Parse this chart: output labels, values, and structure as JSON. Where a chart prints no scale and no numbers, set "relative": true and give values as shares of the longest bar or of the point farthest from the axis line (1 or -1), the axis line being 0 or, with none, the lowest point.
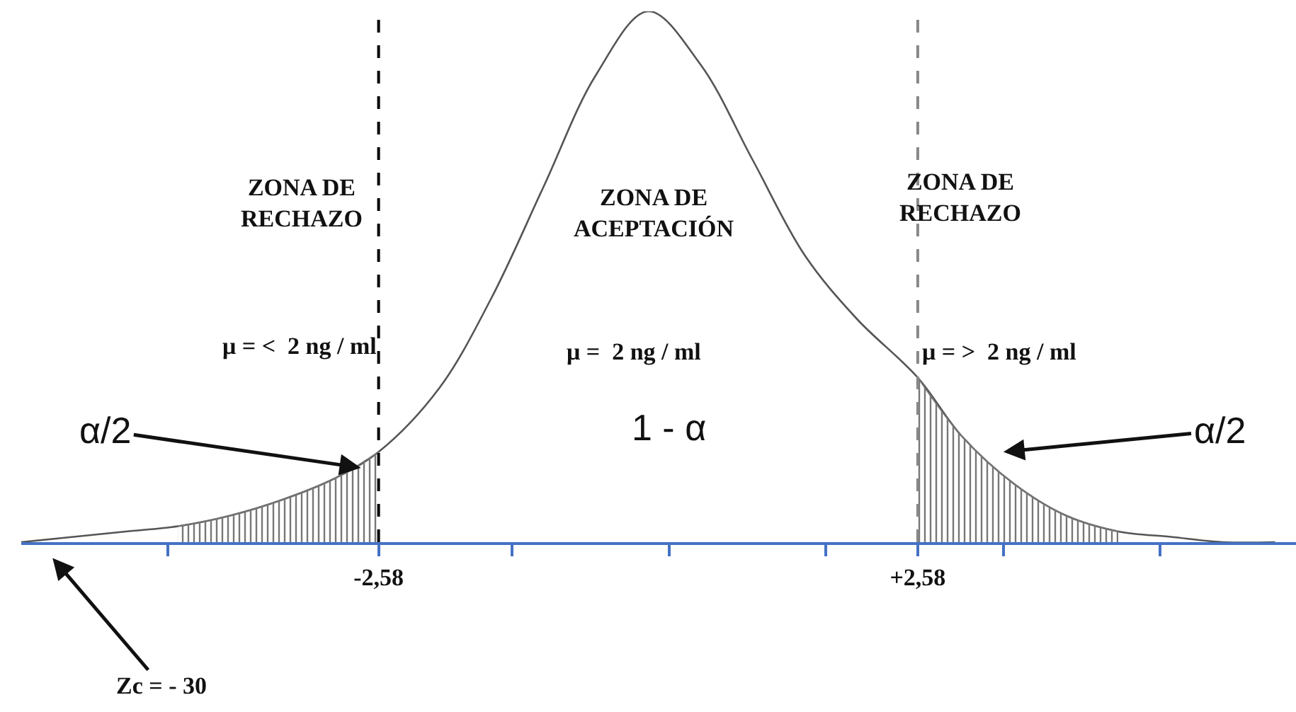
{
  "chart_data": {
    "type": "line",
    "relative": true,
    "tick_labels": "x",
    "line_style": "solid",
    "xlim": [
      -6,
      6.2
    ],
    "xticks": [
      {
        "value": -4.6,
        "label": null
      },
      {
        "value": -2.58,
        "label": "-2,58"
      },
      {
        "value": -1.3,
        "label": null
      },
      {
        "value": 0.2,
        "label": null
      },
      {
        "value": 1.7,
        "label": null
      },
      {
        "value": 2.58,
        "label": "+2,58"
      },
      {
        "value": 3.4,
        "label": null
      },
      {
        "value": 4.9,
        "label": null
      }
    ],
    "series": [
      {
        "color": "#555555",
        "x": [
          -6,
          -5.5,
          -5,
          -4.5,
          -4,
          -3.5,
          -3,
          -2.58,
          -2,
          -1.5,
          -1,
          -0.5,
          0,
          0.5,
          1,
          1.5,
          2,
          2.58,
          3,
          3.5,
          4,
          4.5,
          5,
          5.5,
          6
        ],
        "values": [
          0,
          0.01,
          0.02,
          0.03,
          0.05,
          0.08,
          0.12,
          0.17,
          0.29,
          0.46,
          0.67,
          0.88,
          1,
          0.9,
          0.72,
          0.54,
          0.42,
          0.31,
          0.2,
          0.11,
          0.05,
          0.02,
          0.01,
          0,
          0
        ]
      },
      {
        "type": "area",
        "color": "#777777",
        "x": [
          -4.5,
          -4,
          -3.5,
          -3,
          -2.58
        ],
        "values": [
          0.03,
          0.05,
          0.08,
          0.12,
          0.17
        ]
      },
      {
        "type": "area",
        "color": "#777777",
        "x": [
          2.58,
          3,
          3.5,
          4,
          4.5
        ],
        "values": [
          0.31,
          0.2,
          0.11,
          0.05,
          0.02
        ]
      }
    ],
    "ref_lines": [
      {
        "axis": "x",
        "value": -2.58,
        "color": "#000000",
        "line_style": "dashed"
      },
      {
        "axis": "x",
        "value": 2.58,
        "color": "#888888",
        "line_style": "dashed"
      }
    ],
    "annotations": [
      "ZONA DE\nRECHAZO",
      "ZONA DE\nACEPTACIÓN",
      "ZONA DE\nRECHAZO",
      "μ = <  2 ng / ml",
      "μ =  2 ng / ml",
      "μ = >  2 ng / ml",
      "α/2",
      "1 - α",
      "α/2",
      "Zc = - 30"
    ]
  }
}
